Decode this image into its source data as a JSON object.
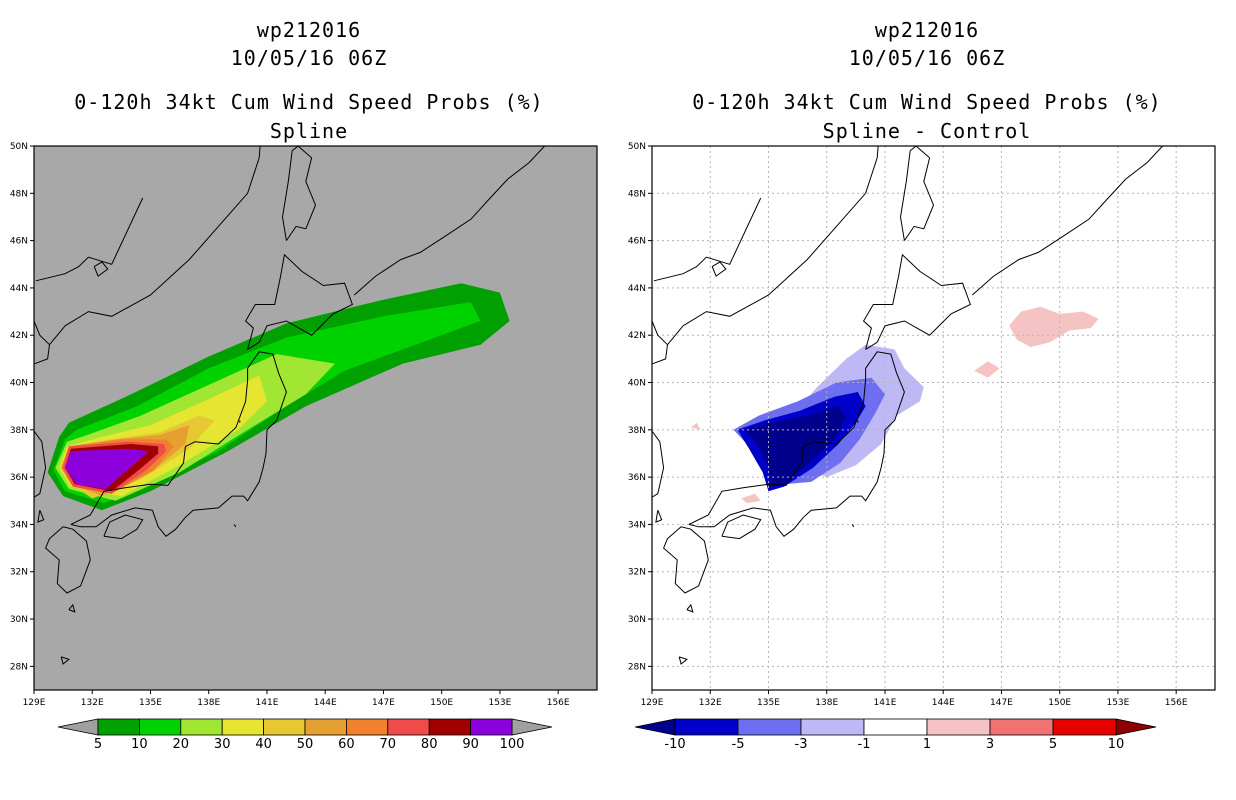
{
  "panels": [
    {
      "storm_id": "wp212016",
      "datetime": "10/05/16 06Z",
      "product": "0-120h 34kt Cum Wind Speed Probs (%)",
      "subtitle": "Spline",
      "background": "#a8a8a8",
      "colorbar": {
        "labels": [
          "5",
          "10",
          "20",
          "30",
          "40",
          "50",
          "60",
          "70",
          "80",
          "90",
          "100"
        ],
        "colors": [
          "#00a000",
          "#00d200",
          "#a0e632",
          "#e6e632",
          "#e6c832",
          "#e6a032",
          "#f0822d",
          "#f04b4b",
          "#a00000",
          "#8c00dc"
        ],
        "end_left": "#a0a0a0",
        "end_right": "#a0a0a0"
      }
    },
    {
      "storm_id": "wp212016",
      "datetime": "10/05/16 06Z",
      "product": "0-120h 34kt Cum Wind Speed Probs (%)",
      "subtitle": "Spline - Control",
      "background": "#ffffff",
      "colorbar": {
        "labels": [
          "-10",
          "-5",
          "-3",
          "-1",
          "1",
          "3",
          "5",
          "10"
        ],
        "colors": [
          "#0000c8",
          "#6e6ef0",
          "#beb9f5",
          "#ffffff",
          "#f5c3c3",
          "#f07373",
          "#e60000"
        ],
        "end_left": "#00008c",
        "end_right": "#8c0000"
      }
    }
  ],
  "map": {
    "lon_labels": [
      "129E",
      "132E",
      "135E",
      "138E",
      "141E",
      "144E",
      "147E",
      "150E",
      "153E",
      "156E"
    ],
    "lat_labels": [
      "50N",
      "48N",
      "46N",
      "44N",
      "42N",
      "40N",
      "38N",
      "36N",
      "34N",
      "32N",
      "30N",
      "28N"
    ]
  }
}
